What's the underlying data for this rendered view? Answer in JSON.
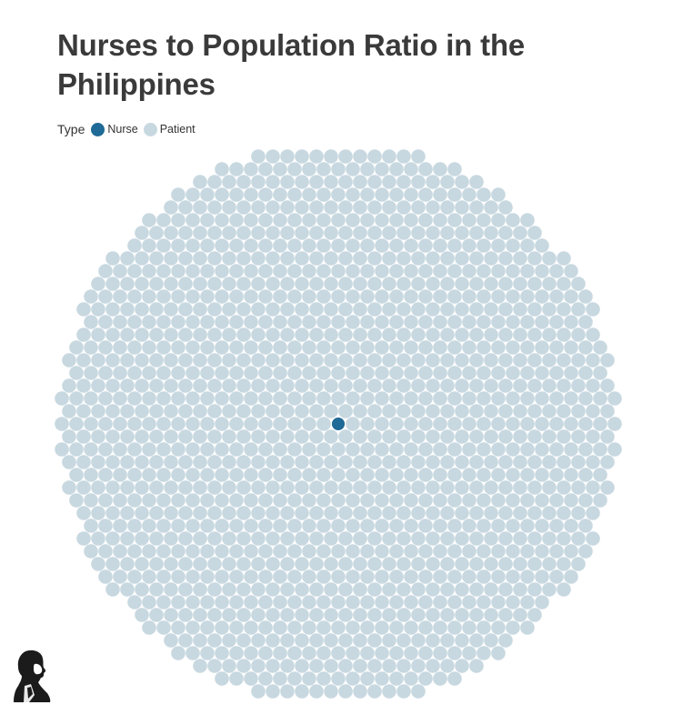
{
  "title": "Nurses to Population Ratio in the Philippines",
  "legend": {
    "title": "Type",
    "items": [
      {
        "label": "Nurse",
        "color": "#1f6a96"
      },
      {
        "label": "Patient",
        "color": "#c8d8e0"
      }
    ]
  },
  "chart_data": {
    "type": "scatter",
    "subtype": "packed-dot-circle",
    "title": "Nurses to Population Ratio in the Philippines",
    "legend_title": "Type",
    "legend_placement": "top-left",
    "categories": [
      "Nurse",
      "Patient"
    ],
    "series": [
      {
        "name": "Nurse",
        "count": 1,
        "color": "#1f6a96"
      },
      {
        "name": "Patient",
        "count": 1334,
        "color": "#c8d8e0"
      }
    ],
    "grid": false
  },
  "logo": {
    "icon": "portrait-silhouette-icon"
  }
}
